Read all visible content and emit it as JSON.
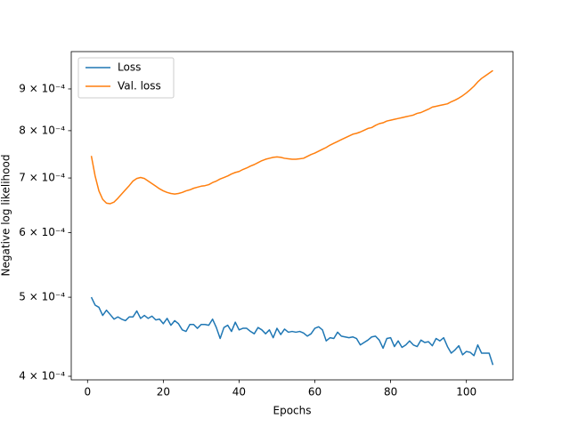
{
  "chart_data": {
    "type": "line",
    "xlabel": "Epochs",
    "ylabel": "Negative log likelihood",
    "x": [
      1,
      2,
      3,
      4,
      5,
      6,
      7,
      8,
      9,
      10,
      11,
      12,
      13,
      14,
      15,
      16,
      17,
      18,
      19,
      20,
      21,
      22,
      23,
      24,
      25,
      26,
      27,
      28,
      29,
      30,
      31,
      32,
      33,
      34,
      35,
      36,
      37,
      38,
      39,
      40,
      41,
      42,
      43,
      44,
      45,
      46,
      47,
      48,
      49,
      50,
      51,
      52,
      53,
      54,
      55,
      56,
      57,
      58,
      59,
      60,
      61,
      62,
      63,
      64,
      65,
      66,
      67,
      68,
      69,
      70,
      71,
      72,
      73,
      74,
      75,
      76,
      77,
      78,
      79,
      80,
      81,
      82,
      83,
      84,
      85,
      86,
      87,
      88,
      89,
      90,
      91,
      92,
      93,
      94,
      95,
      96,
      97,
      98,
      99,
      100,
      101,
      102,
      103,
      104,
      105,
      106,
      107
    ],
    "series": [
      {
        "name": "Loss",
        "color": "#1f77b4",
        "values": [
          0.0005,
          0.000489,
          0.000486,
          0.000475,
          0.000482,
          0.000476,
          0.00047,
          0.000473,
          0.00047,
          0.000468,
          0.000473,
          0.000473,
          0.000481,
          0.000471,
          0.000475,
          0.000471,
          0.000474,
          0.000469,
          0.00047,
          0.000464,
          0.000471,
          0.000462,
          0.000468,
          0.000464,
          0.000456,
          0.000454,
          0.000463,
          0.000463,
          0.000458,
          0.000463,
          0.000463,
          0.000462,
          0.00047,
          0.000459,
          0.000445,
          0.000459,
          0.000462,
          0.000454,
          0.000466,
          0.000456,
          0.000458,
          0.000458,
          0.000454,
          0.000451,
          0.000459,
          0.000456,
          0.000451,
          0.000456,
          0.000446,
          0.000458,
          0.00045,
          0.000457,
          0.000453,
          0.000454,
          0.000453,
          0.000454,
          0.000452,
          0.000448,
          0.000451,
          0.000458,
          0.00046,
          0.000456,
          0.000442,
          0.000446,
          0.000445,
          0.000453,
          0.000448,
          0.000447,
          0.000446,
          0.000447,
          0.000445,
          0.000437,
          0.00044,
          0.000443,
          0.000447,
          0.000448,
          0.000443,
          0.000433,
          0.000445,
          0.000446,
          0.000435,
          0.000442,
          0.000434,
          0.000437,
          0.000442,
          0.000437,
          0.000435,
          0.000443,
          0.00044,
          0.000441,
          0.000436,
          0.000445,
          0.000442,
          0.000446,
          0.000435,
          0.000427,
          0.000431,
          0.000436,
          0.000425,
          0.000429,
          0.000428,
          0.000424,
          0.000437,
          0.000427,
          0.000427,
          0.000427,
          0.000413
        ]
      },
      {
        "name": "Val. loss",
        "color": "#ff7f0e",
        "values": [
          0.000745,
          0.000704,
          0.000675,
          0.000659,
          0.000652,
          0.000651,
          0.000654,
          0.000661,
          0.000669,
          0.000677,
          0.000685,
          0.000694,
          0.000699,
          0.000701,
          0.000699,
          0.000694,
          0.000689,
          0.000684,
          0.000679,
          0.000675,
          0.000672,
          0.00067,
          0.000669,
          0.00067,
          0.000672,
          0.000675,
          0.000677,
          0.00068,
          0.000682,
          0.000684,
          0.000685,
          0.000687,
          0.000691,
          0.000694,
          0.000698,
          0.000701,
          0.000704,
          0.000708,
          0.000711,
          0.000713,
          0.000717,
          0.00072,
          0.000724,
          0.000727,
          0.000731,
          0.000735,
          0.000738,
          0.00074,
          0.000742,
          0.000743,
          0.000742,
          0.00074,
          0.000739,
          0.000738,
          0.000738,
          0.000739,
          0.00074,
          0.000744,
          0.000748,
          0.000751,
          0.000755,
          0.000759,
          0.000763,
          0.000768,
          0.000772,
          0.000776,
          0.00078,
          0.000784,
          0.000788,
          0.000792,
          0.000794,
          0.000797,
          0.000801,
          0.000805,
          0.000807,
          0.000812,
          0.000816,
          0.000818,
          0.000822,
          0.000824,
          0.000826,
          0.000828,
          0.00083,
          0.000832,
          0.000834,
          0.000836,
          0.00084,
          0.000842,
          0.000846,
          0.00085,
          0.000855,
          0.000857,
          0.000859,
          0.000861,
          0.000863,
          0.000868,
          0.000872,
          0.000877,
          0.000883,
          0.00089,
          0.000898,
          0.000907,
          0.000918,
          0.000927,
          0.000934,
          0.000941,
          0.000948
        ]
      }
    ],
    "xlim": [
      -4.3,
      112.3
    ],
    "xticks": [
      0,
      20,
      40,
      60,
      80,
      100
    ],
    "ylim": [
      0.000396,
      0.001
    ],
    "ylog": true,
    "yticks": [
      {
        "value": 0.0004,
        "label": "4 × 10⁻⁴"
      },
      {
        "value": 0.0005,
        "label": "5 × 10⁻⁴"
      },
      {
        "value": 0.0006,
        "label": "6 × 10⁻⁴"
      },
      {
        "value": 0.0007,
        "label": "7 × 10⁻⁴"
      },
      {
        "value": 0.0008,
        "label": "8 × 10⁻⁴"
      },
      {
        "value": 0.0009,
        "label": "9 × 10⁻⁴"
      }
    ],
    "legend": "upper left",
    "grid": false
  }
}
